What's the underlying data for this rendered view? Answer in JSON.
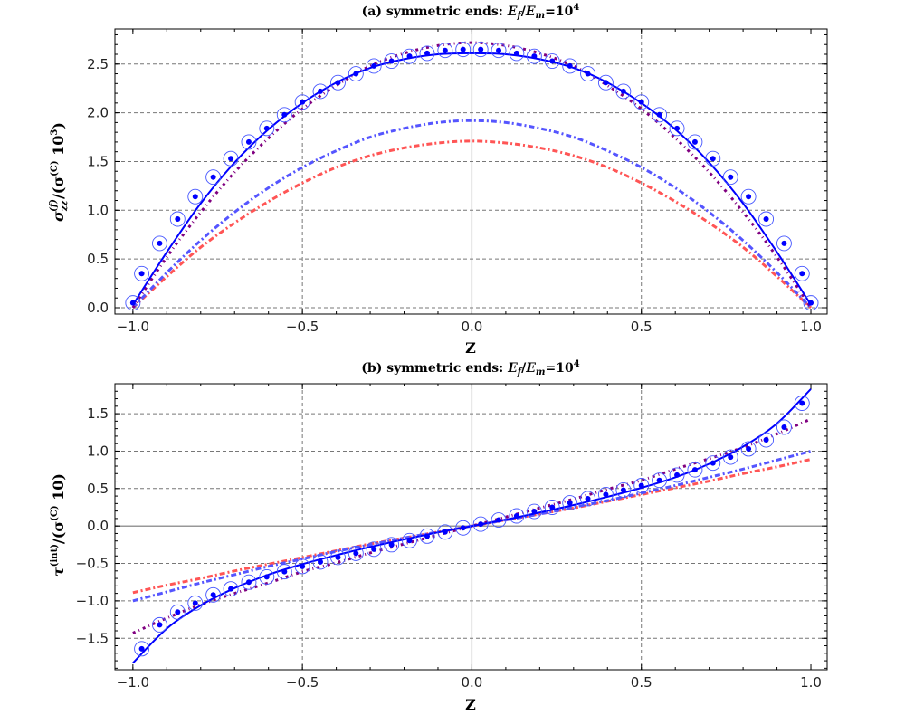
{
  "chart_data": [
    {
      "type": "line",
      "title": {
        "prefix": "(a) symmetric ends: ",
        "e1": "E",
        "s1": "f",
        "slash": "/",
        "e2": "E",
        "s2": "m",
        "eq": "=10",
        "exp": "4"
      },
      "xlabel": "Z",
      "ylabel": {
        "main": "σ",
        "sub": "zz",
        "sup": "(f)",
        "mid": "/(σ",
        "sup2": "(C)",
        "tail": " 10",
        "sup3": "3",
        "close": ")"
      },
      "xlim": [
        -1.053,
        1.048
      ],
      "ylim": [
        -0.065,
        2.86
      ],
      "xticks": [
        "-1.0",
        "-0.5",
        "0.0",
        "0.5",
        "1.0"
      ],
      "yticks": [
        "0.0",
        "0.5",
        "1.0",
        "1.5",
        "2.0",
        "2.5"
      ],
      "grid": true,
      "x": [
        -1.0,
        -0.9,
        -0.8,
        -0.7,
        -0.6,
        -0.5,
        -0.4,
        -0.3,
        -0.2,
        -0.1,
        0.0,
        0.1,
        0.2,
        0.3,
        0.4,
        0.5,
        0.6,
        0.7,
        0.8,
        0.9,
        1.0
      ],
      "series": [
        {
          "style": "dashdot",
          "color": "#ff5555",
          "values": [
            0.0,
            0.32,
            0.62,
            0.87,
            1.09,
            1.28,
            1.44,
            1.56,
            1.64,
            1.69,
            1.71,
            1.69,
            1.64,
            1.56,
            1.44,
            1.28,
            1.09,
            0.87,
            0.62,
            0.32,
            0.0
          ]
        },
        {
          "style": "dashdot",
          "color": "#5555ff",
          "values": [
            0.0,
            0.36,
            0.69,
            0.98,
            1.23,
            1.44,
            1.61,
            1.75,
            1.84,
            1.9,
            1.92,
            1.9,
            1.84,
            1.75,
            1.61,
            1.44,
            1.23,
            0.98,
            0.69,
            0.36,
            0.0
          ]
        },
        {
          "style": "dotted",
          "color": "#800080",
          "values": [
            0.0,
            0.52,
            0.98,
            1.39,
            1.74,
            2.04,
            2.28,
            2.48,
            2.61,
            2.69,
            2.72,
            2.69,
            2.61,
            2.48,
            2.28,
            2.04,
            1.74,
            1.39,
            0.98,
            0.52,
            0.0
          ]
        },
        {
          "style": "solid",
          "color": "#0000ff",
          "values": [
            0.03,
            0.57,
            1.07,
            1.49,
            1.83,
            2.1,
            2.31,
            2.46,
            2.55,
            2.6,
            2.61,
            2.6,
            2.55,
            2.46,
            2.31,
            2.1,
            1.83,
            1.49,
            1.07,
            0.57,
            0.03
          ]
        }
      ],
      "points": {
        "color": "#0000ff",
        "x": [
          -1.0,
          -0.974,
          -0.921,
          -0.868,
          -0.816,
          -0.763,
          -0.711,
          -0.658,
          -0.605,
          -0.553,
          -0.5,
          -0.447,
          -0.395,
          -0.342,
          -0.289,
          -0.237,
          -0.184,
          -0.132,
          -0.079,
          -0.026,
          0.026,
          0.079,
          0.132,
          0.184,
          0.237,
          0.289,
          0.342,
          0.395,
          0.447,
          0.5,
          0.553,
          0.605,
          0.658,
          0.711,
          0.763,
          0.816,
          0.868,
          0.921,
          0.974,
          1.0
        ],
        "y": [
          0.05,
          0.35,
          0.66,
          0.91,
          1.14,
          1.34,
          1.53,
          1.7,
          1.84,
          1.98,
          2.11,
          2.22,
          2.31,
          2.4,
          2.48,
          2.53,
          2.58,
          2.61,
          2.64,
          2.65,
          2.65,
          2.64,
          2.61,
          2.58,
          2.53,
          2.48,
          2.4,
          2.31,
          2.22,
          2.11,
          1.98,
          1.84,
          1.7,
          1.53,
          1.34,
          1.14,
          0.91,
          0.66,
          0.35,
          0.05
        ]
      }
    },
    {
      "type": "line",
      "title": {
        "prefix": "(b) symmetric ends: ",
        "e1": "E",
        "s1": "f",
        "slash": "/",
        "e2": "E",
        "s2": "m",
        "eq": "=10",
        "exp": "4"
      },
      "xlabel": "Z",
      "ylabel": {
        "main": "τ",
        "sub": "",
        "sup": "(int)",
        "mid": "/(σ",
        "sup2": "(C)",
        "tail": " 10",
        "sup3": "",
        "close": ")"
      },
      "xlim": [
        -1.053,
        1.048
      ],
      "ylim": [
        -1.92,
        1.9
      ],
      "xticks": [
        "-1.0",
        "-0.5",
        "0.0",
        "0.5",
        "1.0"
      ],
      "yticks": [
        "-1.5",
        "-1.0",
        "-0.5",
        "0.0",
        "0.5",
        "1.0",
        "1.5"
      ],
      "grid": true,
      "x": [
        -1.0,
        -0.9,
        -0.8,
        -0.7,
        -0.6,
        -0.5,
        -0.4,
        -0.3,
        -0.2,
        -0.1,
        0.0,
        0.1,
        0.2,
        0.3,
        0.4,
        0.5,
        0.6,
        0.7,
        0.8,
        0.9,
        1.0
      ],
      "series": [
        {
          "style": "dashdot",
          "color": "#ff5555",
          "values": [
            -0.89,
            -0.79,
            -0.7,
            -0.6,
            -0.51,
            -0.42,
            -0.33,
            -0.24,
            -0.16,
            -0.08,
            0.0,
            0.08,
            0.16,
            0.24,
            0.33,
            0.42,
            0.51,
            0.6,
            0.7,
            0.79,
            0.89
          ]
        },
        {
          "style": "dashdot",
          "color": "#5555ff",
          "values": [
            -1.0,
            -0.88,
            -0.76,
            -0.65,
            -0.54,
            -0.44,
            -0.34,
            -0.25,
            -0.16,
            -0.08,
            0.0,
            0.08,
            0.16,
            0.25,
            0.34,
            0.44,
            0.54,
            0.65,
            0.76,
            0.88,
            1.0
          ]
        },
        {
          "style": "dotted",
          "color": "#800080",
          "values": [
            -1.43,
            -1.23,
            -1.05,
            -0.9,
            -0.76,
            -0.61,
            -0.49,
            -0.36,
            -0.24,
            -0.12,
            0.0,
            0.12,
            0.24,
            0.36,
            0.49,
            0.61,
            0.76,
            0.9,
            1.05,
            1.23,
            1.43
          ]
        },
        {
          "style": "solid",
          "color": "#0000ff",
          "values": [
            -1.83,
            -1.37,
            -1.06,
            -0.83,
            -0.65,
            -0.51,
            -0.39,
            -0.28,
            -0.18,
            -0.085,
            0.0,
            0.085,
            0.18,
            0.28,
            0.39,
            0.51,
            0.65,
            0.83,
            1.06,
            1.37,
            1.83
          ]
        }
      ],
      "points": {
        "color": "#0000ff",
        "x": [
          -0.974,
          -0.921,
          -0.868,
          -0.816,
          -0.763,
          -0.711,
          -0.658,
          -0.605,
          -0.553,
          -0.5,
          -0.447,
          -0.395,
          -0.342,
          -0.289,
          -0.237,
          -0.184,
          -0.132,
          -0.079,
          -0.026,
          0.026,
          0.079,
          0.132,
          0.184,
          0.237,
          0.289,
          0.342,
          0.395,
          0.447,
          0.5,
          0.553,
          0.605,
          0.658,
          0.711,
          0.763,
          0.816,
          0.868,
          0.921,
          0.974
        ],
        "y": [
          -1.64,
          -1.32,
          -1.15,
          -1.03,
          -0.92,
          -0.84,
          -0.75,
          -0.68,
          -0.61,
          -0.54,
          -0.48,
          -0.42,
          -0.365,
          -0.31,
          -0.25,
          -0.195,
          -0.135,
          -0.08,
          -0.025,
          0.025,
          0.08,
          0.135,
          0.195,
          0.25,
          0.31,
          0.365,
          0.42,
          0.48,
          0.54,
          0.61,
          0.68,
          0.75,
          0.84,
          0.92,
          1.03,
          1.15,
          1.32,
          1.64
        ]
      }
    }
  ]
}
